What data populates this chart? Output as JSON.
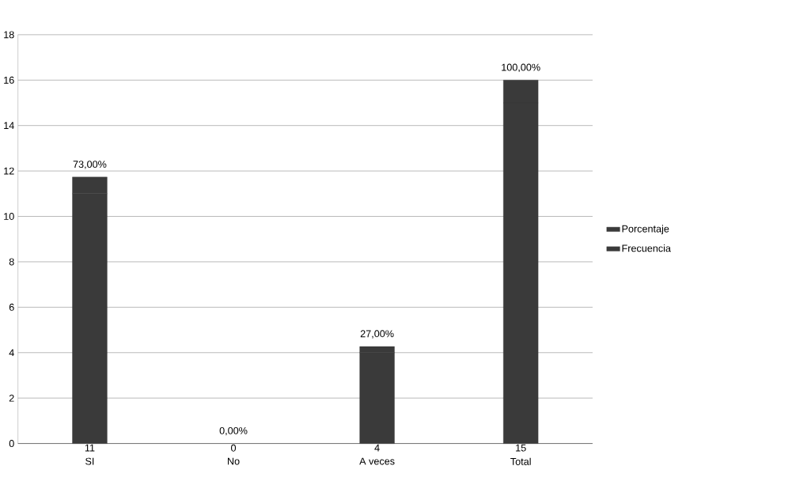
{
  "chart_data": {
    "type": "bar",
    "stacked": true,
    "categories": [
      "SI",
      "No",
      "A veces",
      "Total"
    ],
    "series": [
      {
        "name": "Frecuencia",
        "color": "#3a3a3a",
        "values": [
          11,
          0,
          4,
          15
        ],
        "value_labels": [
          "11",
          "0",
          "4",
          "15"
        ]
      },
      {
        "name": "Porcentaje",
        "color": "#3a3a3a",
        "values": [
          0.73,
          0,
          0.27,
          1.0
        ],
        "value_labels": [
          "73,00%",
          "0,00%",
          "27,00%",
          "100,00%"
        ]
      }
    ],
    "ylim": [
      0,
      18
    ],
    "yticks": [
      0,
      2,
      4,
      6,
      8,
      10,
      12,
      14,
      16,
      18
    ],
    "grid": "y",
    "legend": "right"
  }
}
